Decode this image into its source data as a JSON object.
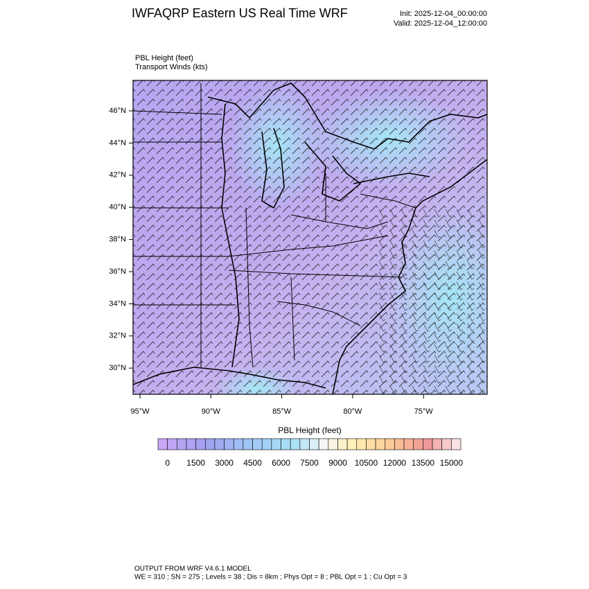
{
  "header": {
    "title": "IWFAQRP Eastern US Real Time WRF",
    "init": "Init: 2025-12-04_00:00:00",
    "valid": "Valid: 2025-12-04_12:00:00"
  },
  "map": {
    "field_label": "PBL Height   (feet)",
    "wind_label": "Transport Winds   (kts)",
    "lat_labels": [
      "46°N",
      "44°N",
      "42°N",
      "40°N",
      "38°N",
      "36°N",
      "34°N",
      "32°N",
      "30°N"
    ],
    "lon_labels": [
      "95°W",
      "90°W",
      "85°W",
      "80°W",
      "75°W"
    ]
  },
  "colorbar": {
    "title": "PBL Height  (feet)",
    "labels": [
      "0",
      "1500",
      "3000",
      "4500",
      "6000",
      "7500",
      "9000",
      "10500",
      "12000",
      "13500",
      "15000"
    ]
  },
  "footer": {
    "line1": "OUTPUT FROM WRF V4.6.1 MODEL",
    "line2": "WE = 310 ; SN = 275 ; Levels = 38 ; Dis = 8km ; Phys Opt = 8 ; PBL Opt = 1 ; Cu Opt = 3"
  }
}
